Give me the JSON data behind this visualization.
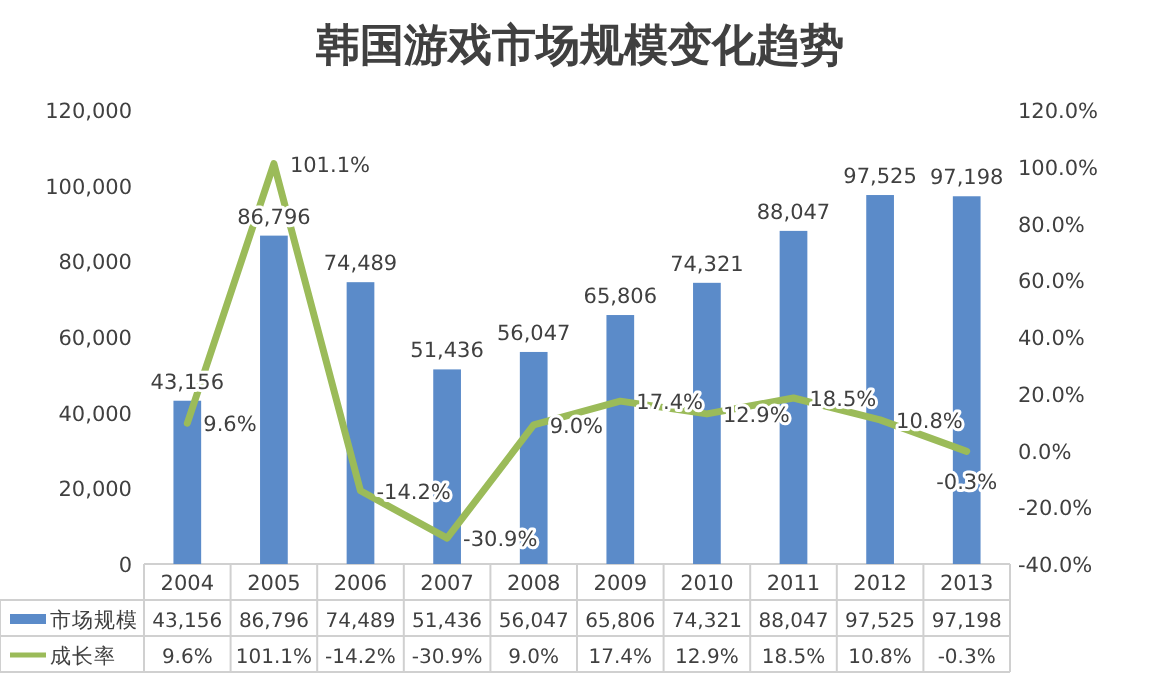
{
  "chart_data": {
    "type": "bar",
    "title": "韩国游戏市场规模变化趋势",
    "categories": [
      "2004",
      "2005",
      "2006",
      "2007",
      "2008",
      "2009",
      "2010",
      "2011",
      "2012",
      "2013"
    ],
    "series": [
      {
        "name": "市场规模",
        "color": "#5b8bc9",
        "values": [
          43156,
          86796,
          74489,
          51436,
          56047,
          65806,
          74321,
          88047,
          97525,
          97198
        ],
        "value_labels": [
          "43,156",
          "86,796",
          "74,489",
          "51,436",
          "56,047",
          "65,806",
          "74,321",
          "88,047",
          "97,525",
          "97,198"
        ]
      },
      {
        "name": "成长率",
        "type": "line",
        "axis": "y2",
        "color": "#9bbb59",
        "values": [
          9.6,
          101.1,
          -14.2,
          -30.9,
          9.0,
          17.4,
          12.9,
          18.5,
          10.8,
          -0.3
        ],
        "value_labels": [
          "9.6%",
          "101.1%",
          "-14.2%",
          "-30.9%",
          "9.0%",
          "17.4%",
          "12.9%",
          "18.5%",
          "10.8%",
          "-0.3%"
        ]
      }
    ],
    "ylim": [
      0,
      120000
    ],
    "yticks": [
      0,
      {
        "value": 20000,
        "label": "20,000"
      },
      {
        "value": 40000,
        "label": "40,000"
      },
      {
        "value": 60000,
        "label": "60,000"
      },
      {
        "value": 80000,
        "label": "80,000"
      },
      {
        "value": 100000,
        "label": "100,000"
      },
      {
        "value": 120000,
        "label": "120,000"
      }
    ],
    "y2lim": [
      -40,
      120
    ],
    "y2ticks": [
      {
        "value": -40,
        "label": "-40.0%"
      },
      {
        "value": -20,
        "label": "-20.0%"
      },
      {
        "value": 0,
        "label": "0.0%"
      },
      {
        "value": 20,
        "label": "20.0%"
      },
      {
        "value": 40,
        "label": "40.0%"
      },
      {
        "value": 60,
        "label": "60.0%"
      },
      {
        "value": 80,
        "label": "80.0%"
      },
      {
        "value": 100,
        "label": "100.0%"
      },
      {
        "value": 120,
        "label": "120.0%"
      }
    ],
    "legend": "bottom"
  }
}
